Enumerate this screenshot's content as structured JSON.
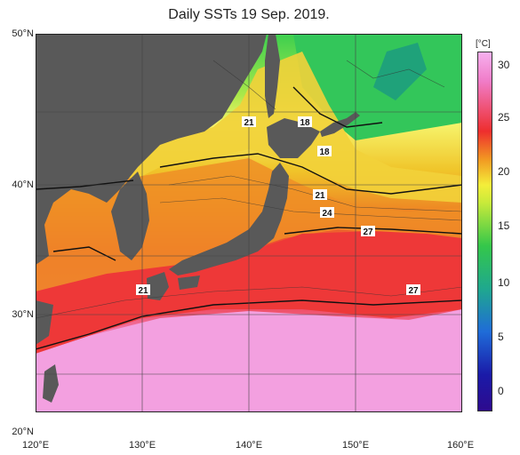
{
  "title": "Daily SSTs 19 Sep. 2019.",
  "lat_labels": [
    "50°N",
    "40°N",
    "30°N",
    "20°N"
  ],
  "lon_labels": [
    "120°E",
    "130°E",
    "140°E",
    "150°E",
    "160°E"
  ],
  "colorbar": {
    "unit": "[°C]",
    "ticks": [
      "30",
      "25",
      "20",
      "15",
      "10",
      "5",
      "0"
    ],
    "range_c": [
      -2,
      32
    ]
  },
  "contour_labels": [
    "21",
    "18",
    "18",
    "21",
    "24",
    "27",
    "21",
    "27"
  ],
  "colors": {
    "land": "#595959",
    "warm_sea": "#f0a0e0",
    "hot_sea": "#f03a3a",
    "cold_sea": "#3acd50"
  }
}
